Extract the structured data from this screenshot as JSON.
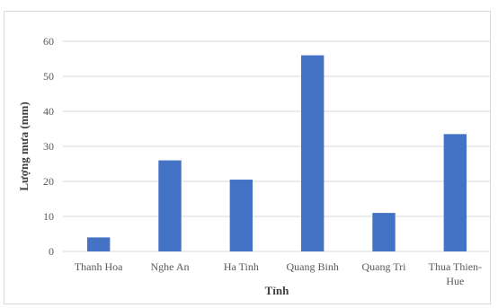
{
  "chart_data": {
    "type": "bar",
    "title": "",
    "xlabel": "Tỉnh",
    "ylabel": "Lượng mưa (mm)",
    "categories": [
      "Thanh Hoa",
      "Nghe An",
      "Ha Tinh",
      "Quang Binh",
      "Quang Tri",
      "Thua Thien-Hue"
    ],
    "category_lines": [
      [
        "Thanh Hoa"
      ],
      [
        "Nghe An"
      ],
      [
        "Ha Tinh"
      ],
      [
        "Quang Binh"
      ],
      [
        "Quang Tri"
      ],
      [
        "Thua Thien-",
        "Hue"
      ]
    ],
    "values": [
      4,
      26,
      20.5,
      56,
      11,
      33.5
    ],
    "ylim": [
      0,
      60
    ],
    "yticks": [
      0,
      10,
      20,
      30,
      40,
      50,
      60
    ],
    "grid": true,
    "legend": "none",
    "bar_color": "#4472c4"
  }
}
